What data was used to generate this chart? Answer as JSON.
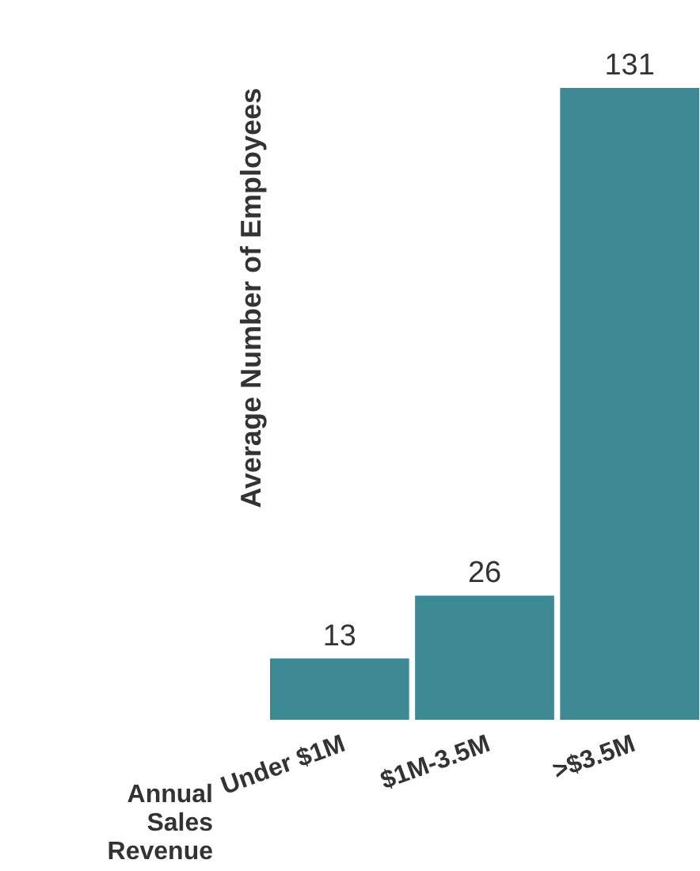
{
  "chart_data": {
    "type": "bar",
    "xlabel": "Annual Sales Revenue",
    "ylabel": "Average Number of Employees",
    "categories": [
      "Under $1M",
      "$1M-3.5M",
      ">$3.5M"
    ],
    "values": [
      13,
      26,
      131
    ],
    "color": "#3d8a94",
    "data_labels": true,
    "tick_labels": "x",
    "grid": false
  }
}
